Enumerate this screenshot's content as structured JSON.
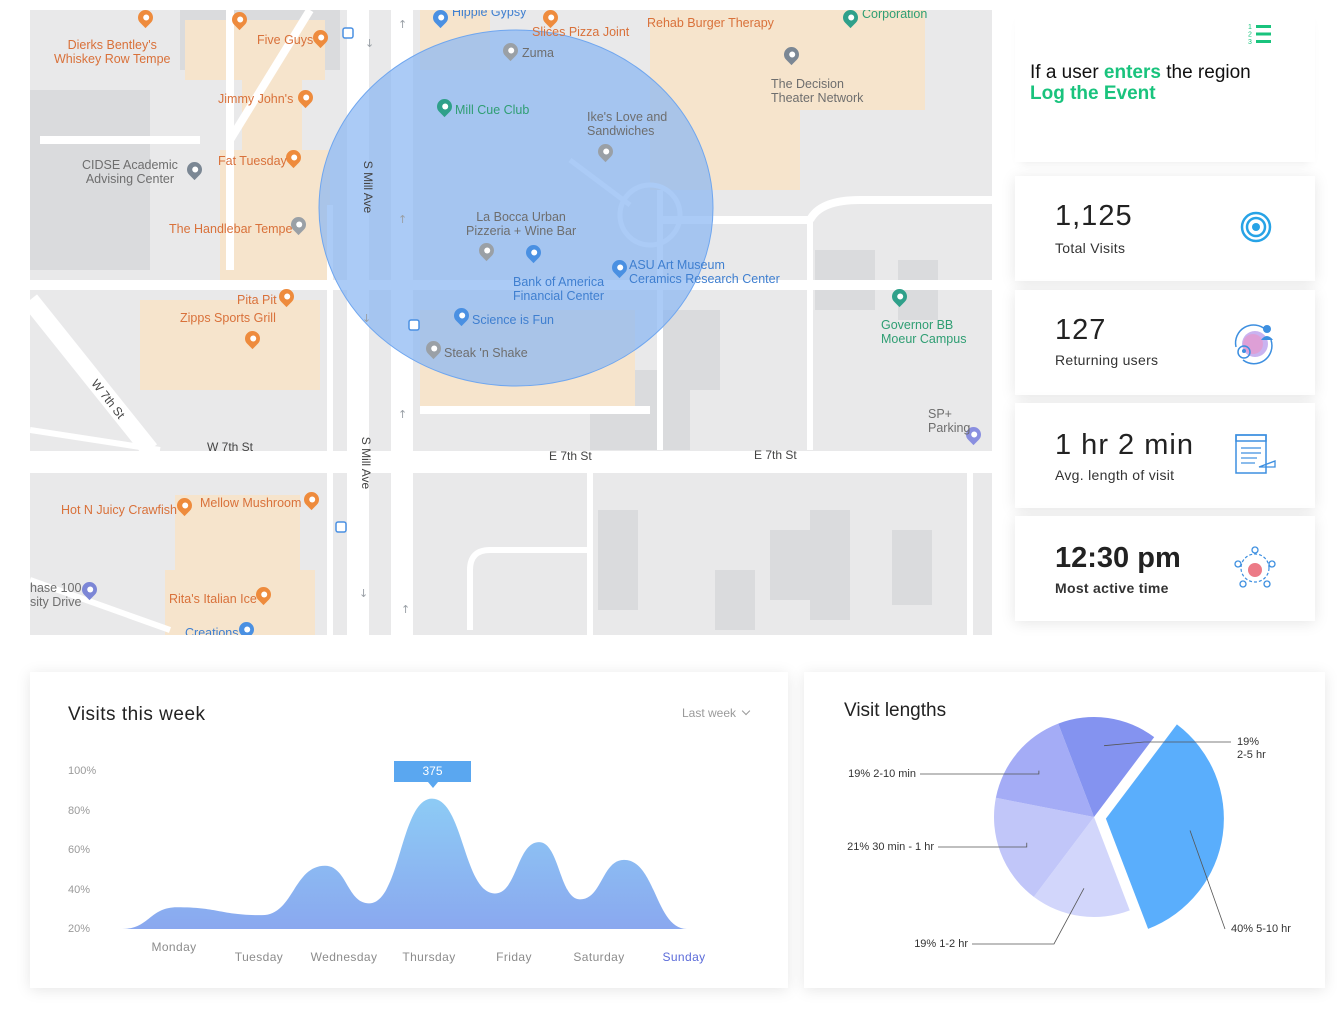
{
  "map": {
    "places": [
      {
        "name": "Dierks Bentley's\nWhiskey Row Tempe",
        "kind": "food"
      },
      {
        "name": "Five Guys",
        "kind": "food"
      },
      {
        "name": "Jimmy John's",
        "kind": "food"
      },
      {
        "name": "CIDSE Academic\nAdvising Center",
        "kind": "gray"
      },
      {
        "name": "Fat Tuesday",
        "kind": "food"
      },
      {
        "name": "The Handlebar Tempe",
        "kind": "food"
      },
      {
        "name": "Pita Pit",
        "kind": "food"
      },
      {
        "name": "Zipps Sports Grill",
        "kind": "food"
      },
      {
        "name": "Hippie Gypsy",
        "kind": "blue"
      },
      {
        "name": "Slices Pizza Joint",
        "kind": "food"
      },
      {
        "name": "Rehab Burger Therapy",
        "kind": "food"
      },
      {
        "name": "Corporation",
        "kind": "green"
      },
      {
        "name": "Zuma",
        "kind": "gray"
      },
      {
        "name": "The Decision\nTheater Network",
        "kind": "gray"
      },
      {
        "name": "Mill Cue Club",
        "kind": "green"
      },
      {
        "name": "Ike's Love and\nSandwiches",
        "kind": "gray"
      },
      {
        "name": "La Bocca Urban\nPizzeria + Wine Bar",
        "kind": "gray"
      },
      {
        "name": "Bank of America\nFinancial Center",
        "kind": "blue"
      },
      {
        "name": "ASU Art Museum\nCeramics Research Center",
        "kind": "blue"
      },
      {
        "name": "Science is Fun",
        "kind": "blue"
      },
      {
        "name": "Steak 'n Shake",
        "kind": "gray"
      },
      {
        "name": "Governor BB\nMoeur Campus",
        "kind": "green"
      },
      {
        "name": "SP+ Parking",
        "kind": "gray"
      },
      {
        "name": "Hot N Juicy Crawfish",
        "kind": "food"
      },
      {
        "name": "Mellow Mushroom",
        "kind": "food"
      },
      {
        "name": "hase 100\nsity Drive",
        "kind": "gray"
      },
      {
        "name": "Rita's Italian Ice",
        "kind": "food"
      },
      {
        "name": "Creations",
        "kind": "blue"
      }
    ],
    "streets": [
      "S Mill Ave",
      "S Mill Ave",
      "W 7th St",
      "W 7th St",
      "E 7th St",
      "E 7th St"
    ]
  },
  "rule": {
    "prefix": "If a user ",
    "keyword": "enters",
    "suffix": " the region",
    "action": "Log the Event",
    "icon": "numbered-list-icon"
  },
  "stats": [
    {
      "value": "1,125",
      "label": "Total Visits",
      "icon": "target-icon"
    },
    {
      "value": "127",
      "label": "Returning users",
      "icon": "returning-user-icon"
    },
    {
      "value": "1 hr 2 min",
      "label": "Avg. length of visit",
      "icon": "document-clock-icon"
    },
    {
      "value": "12:30 pm",
      "label": "Most active time",
      "icon": "team-hub-icon"
    }
  ],
  "visits_card": {
    "title": "Visits this week",
    "filter": "Last week",
    "tooltip": "375"
  },
  "lengths_card": {
    "title": "Visit lengths"
  },
  "colors": {
    "accent_green": "#19c37d",
    "stat_blue": "#27a3e6",
    "circle_fill": "#8ab7f3",
    "chart_top": "#8dcbf5",
    "chart_bottom": "#8aa8ef",
    "active_day": "#5b6bd9"
  },
  "chart_data": [
    {
      "type": "area",
      "title": "Visits this week",
      "categories": [
        "Monday",
        "Tuesday",
        "Wednesday",
        "Thursday",
        "Friday",
        "Saturday",
        "Sunday"
      ],
      "yticks": [
        "100%",
        "80%",
        "60%",
        "40%",
        "20%"
      ],
      "ylim": [
        20,
        100
      ],
      "points": [
        {
          "x": "Monday",
          "y": 31
        },
        {
          "x": "Tuesday",
          "y": 27
        },
        {
          "x": "Wednesday",
          "y": 52
        },
        {
          "x": "Wednesday",
          "y": 33
        },
        {
          "x": "Thursday",
          "y": 86
        },
        {
          "x": "Friday",
          "y": 38
        },
        {
          "x": "Friday",
          "y": 64
        },
        {
          "x": "Saturday",
          "y": 35
        },
        {
          "x": "Saturday",
          "y": 55
        },
        {
          "x": "Sunday",
          "y": 20
        }
      ],
      "highlight": {
        "x": "Thursday",
        "label": "375"
      },
      "selected": "Sunday",
      "grid": false
    },
    {
      "type": "pie",
      "title": "Visit lengths",
      "slices": [
        {
          "label": "40% 5-10 hr",
          "value": 40,
          "color": "#5aaefc"
        },
        {
          "label": "19% 1-2 hr",
          "value": 19,
          "color": "#d2d6fb"
        },
        {
          "label": "21% 30 min - 1 hr",
          "value": 21,
          "color": "#c1c6f9"
        },
        {
          "label": "19% 2-10 min",
          "value": 19,
          "color": "#a4acf6"
        },
        {
          "label": "19%\n2-5 hr",
          "value": 19,
          "color": "#8493f0"
        }
      ]
    }
  ]
}
